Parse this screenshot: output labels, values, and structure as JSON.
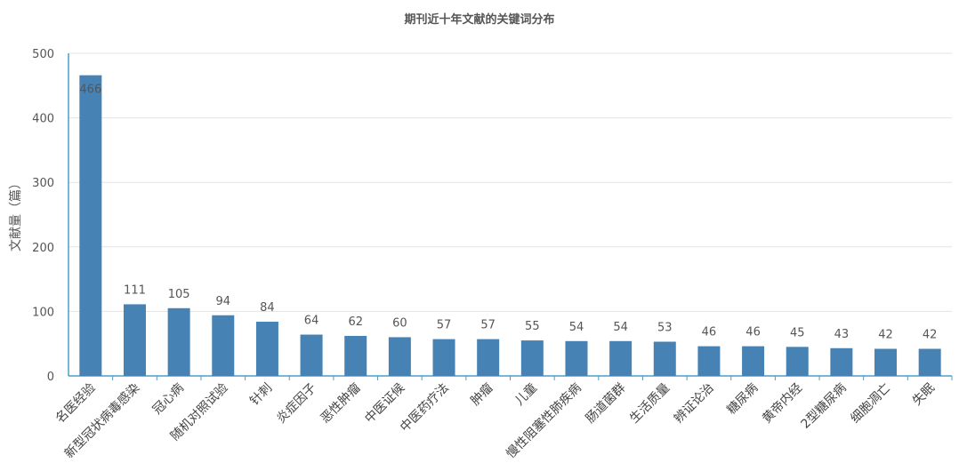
{
  "chart_data": {
    "type": "bar",
    "title": "期刊近十年文献的关键词分布",
    "ylabel": "文献量（篇）",
    "xlabel": "",
    "ylim": [
      0,
      500
    ],
    "yticks": [
      0,
      100,
      200,
      300,
      400,
      500
    ],
    "grid": true,
    "legend": "none",
    "bar_color": "#4682b4",
    "categories": [
      "名医经验",
      "新型冠状病毒感染",
      "冠心病",
      "随机对照试验",
      "针刺",
      "炎症因子",
      "恶性肿瘤",
      "中医证候",
      "中医药疗法",
      "肿瘤",
      "儿童",
      "慢性阻塞性肺疾病",
      "肠道菌群",
      "生活质量",
      "辨证论治",
      "糖尿病",
      "黄帝内经",
      "2型糖尿病",
      "细胞凋亡",
      "失眠"
    ],
    "values": [
      466,
      111,
      105,
      94,
      84,
      64,
      62,
      60,
      57,
      57,
      55,
      54,
      54,
      53,
      46,
      46,
      45,
      43,
      42,
      42
    ]
  }
}
